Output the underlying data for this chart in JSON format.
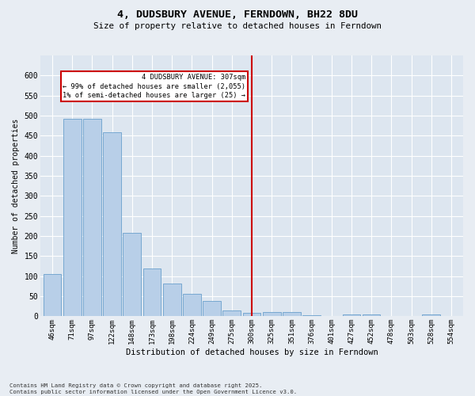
{
  "title": "4, DUDSBURY AVENUE, FERNDOWN, BH22 8DU",
  "subtitle": "Size of property relative to detached houses in Ferndown",
  "xlabel": "Distribution of detached houses by size in Ferndown",
  "ylabel": "Number of detached properties",
  "categories": [
    "46sqm",
    "71sqm",
    "97sqm",
    "122sqm",
    "148sqm",
    "173sqm",
    "198sqm",
    "224sqm",
    "249sqm",
    "275sqm",
    "300sqm",
    "325sqm",
    "351sqm",
    "376sqm",
    "401sqm",
    "427sqm",
    "452sqm",
    "478sqm",
    "503sqm",
    "528sqm",
    "554sqm"
  ],
  "values": [
    105,
    492,
    492,
    458,
    208,
    120,
    82,
    57,
    38,
    14,
    8,
    10,
    11,
    2,
    0,
    5,
    5,
    0,
    0,
    4,
    0
  ],
  "bar_color": "#b8cfe8",
  "bar_edge_color": "#6aa0cc",
  "marker_index": 10,
  "marker_color": "#cc0000",
  "annotation_line1": "4 DUDSBURY AVENUE: 307sqm",
  "annotation_line2": "← 99% of detached houses are smaller (2,055)",
  "annotation_line3": "1% of semi-detached houses are larger (25) →",
  "annotation_box_color": "#cc0000",
  "annotation_bg": "#ffffff",
  "bg_color": "#dde6f0",
  "grid_color": "#ffffff",
  "footer": "Contains HM Land Registry data © Crown copyright and database right 2025.\nContains public sector information licensed under the Open Government Licence v3.0.",
  "ylim": [
    0,
    650
  ],
  "yticks": [
    0,
    50,
    100,
    150,
    200,
    250,
    300,
    350,
    400,
    450,
    500,
    550,
    600
  ],
  "fig_bg": "#e8edf3"
}
